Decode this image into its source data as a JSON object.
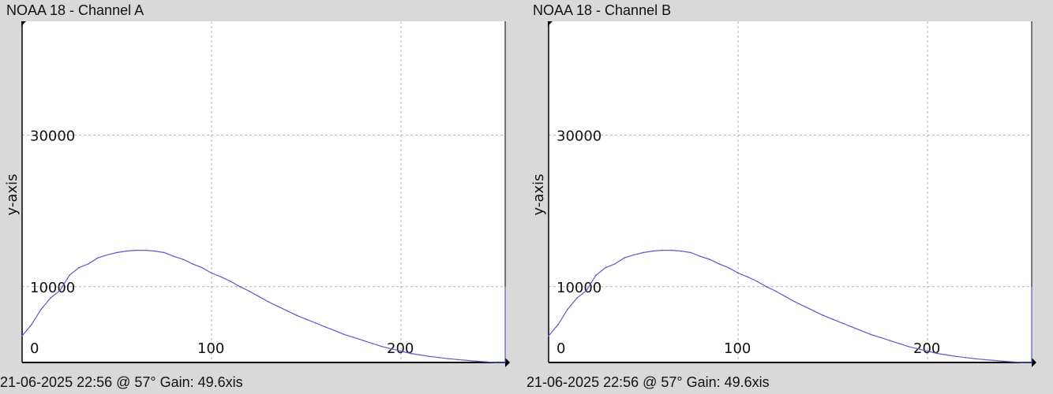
{
  "charts": [
    {
      "title": "NOAA 18 - Channel A",
      "footer": "21-06-2025 22:56 @ 57° Gain: 49.6xis"
    },
    {
      "title": "NOAA 18 - Channel B",
      "footer": "21-06-2025 22:56 @ 57° Gain: 49.6xis"
    }
  ],
  "colors": {
    "line": "#5a5acf",
    "grid": "#b0b0b0",
    "background": "#ffffff",
    "window": "#d9d9d9"
  },
  "chart_data": [
    {
      "type": "line",
      "title": "NOAA 18 - Channel A",
      "xlabel": "",
      "ylabel": "y-axis",
      "xticks": [
        0,
        100,
        200
      ],
      "yticks": [
        10000,
        30000
      ],
      "xlim": [
        0,
        255
      ],
      "ylim": [
        0,
        45000
      ],
      "grid": true,
      "series": [
        {
          "x": [
            0,
            5,
            10,
            15,
            20,
            25,
            30,
            35,
            40,
            45,
            50,
            55,
            60,
            65,
            70,
            75,
            80,
            85,
            90,
            95,
            100,
            105,
            110,
            115,
            120,
            125,
            130,
            135,
            140,
            145,
            150,
            155,
            160,
            165,
            170,
            175,
            180,
            185,
            190,
            195,
            200,
            205,
            210,
            215,
            220,
            225,
            230,
            235,
            240,
            245,
            250,
            255
          ],
          "y": [
            3500,
            5000,
            7000,
            8500,
            9500,
            11500,
            12500,
            13000,
            13800,
            14200,
            14500,
            14700,
            14800,
            14800,
            14700,
            14500,
            14000,
            13600,
            13000,
            12500,
            11800,
            11300,
            10700,
            10000,
            9400,
            8700,
            8000,
            7400,
            6800,
            6200,
            5700,
            5200,
            4700,
            4200,
            3700,
            3300,
            2900,
            2500,
            2100,
            1800,
            1500,
            1200,
            1000,
            800,
            650,
            500,
            380,
            270,
            170,
            80,
            0,
            10000
          ]
        }
      ]
    },
    {
      "type": "line",
      "title": "NOAA 18 - Channel B",
      "xlabel": "",
      "ylabel": "y-axis",
      "xticks": [
        0,
        100,
        200
      ],
      "yticks": [
        10000,
        30000
      ],
      "xlim": [
        0,
        255
      ],
      "ylim": [
        0,
        45000
      ],
      "grid": true,
      "series": [
        {
          "x": [
            0,
            5,
            10,
            15,
            20,
            25,
            30,
            35,
            40,
            45,
            50,
            55,
            60,
            65,
            70,
            75,
            80,
            85,
            90,
            95,
            100,
            105,
            110,
            115,
            120,
            125,
            130,
            135,
            140,
            145,
            150,
            155,
            160,
            165,
            170,
            175,
            180,
            185,
            190,
            195,
            200,
            205,
            210,
            215,
            220,
            225,
            230,
            235,
            240,
            245,
            250,
            255
          ],
          "y": [
            3500,
            5000,
            7000,
            8500,
            9500,
            11500,
            12500,
            13000,
            13800,
            14200,
            14500,
            14700,
            14800,
            14800,
            14700,
            14500,
            14000,
            13600,
            13000,
            12500,
            11800,
            11300,
            10700,
            10000,
            9400,
            8700,
            8000,
            7400,
            6800,
            6200,
            5700,
            5200,
            4700,
            4200,
            3700,
            3300,
            2900,
            2500,
            2100,
            1800,
            1500,
            1200,
            1000,
            800,
            650,
            500,
            380,
            270,
            170,
            80,
            0,
            10000
          ]
        }
      ]
    }
  ]
}
